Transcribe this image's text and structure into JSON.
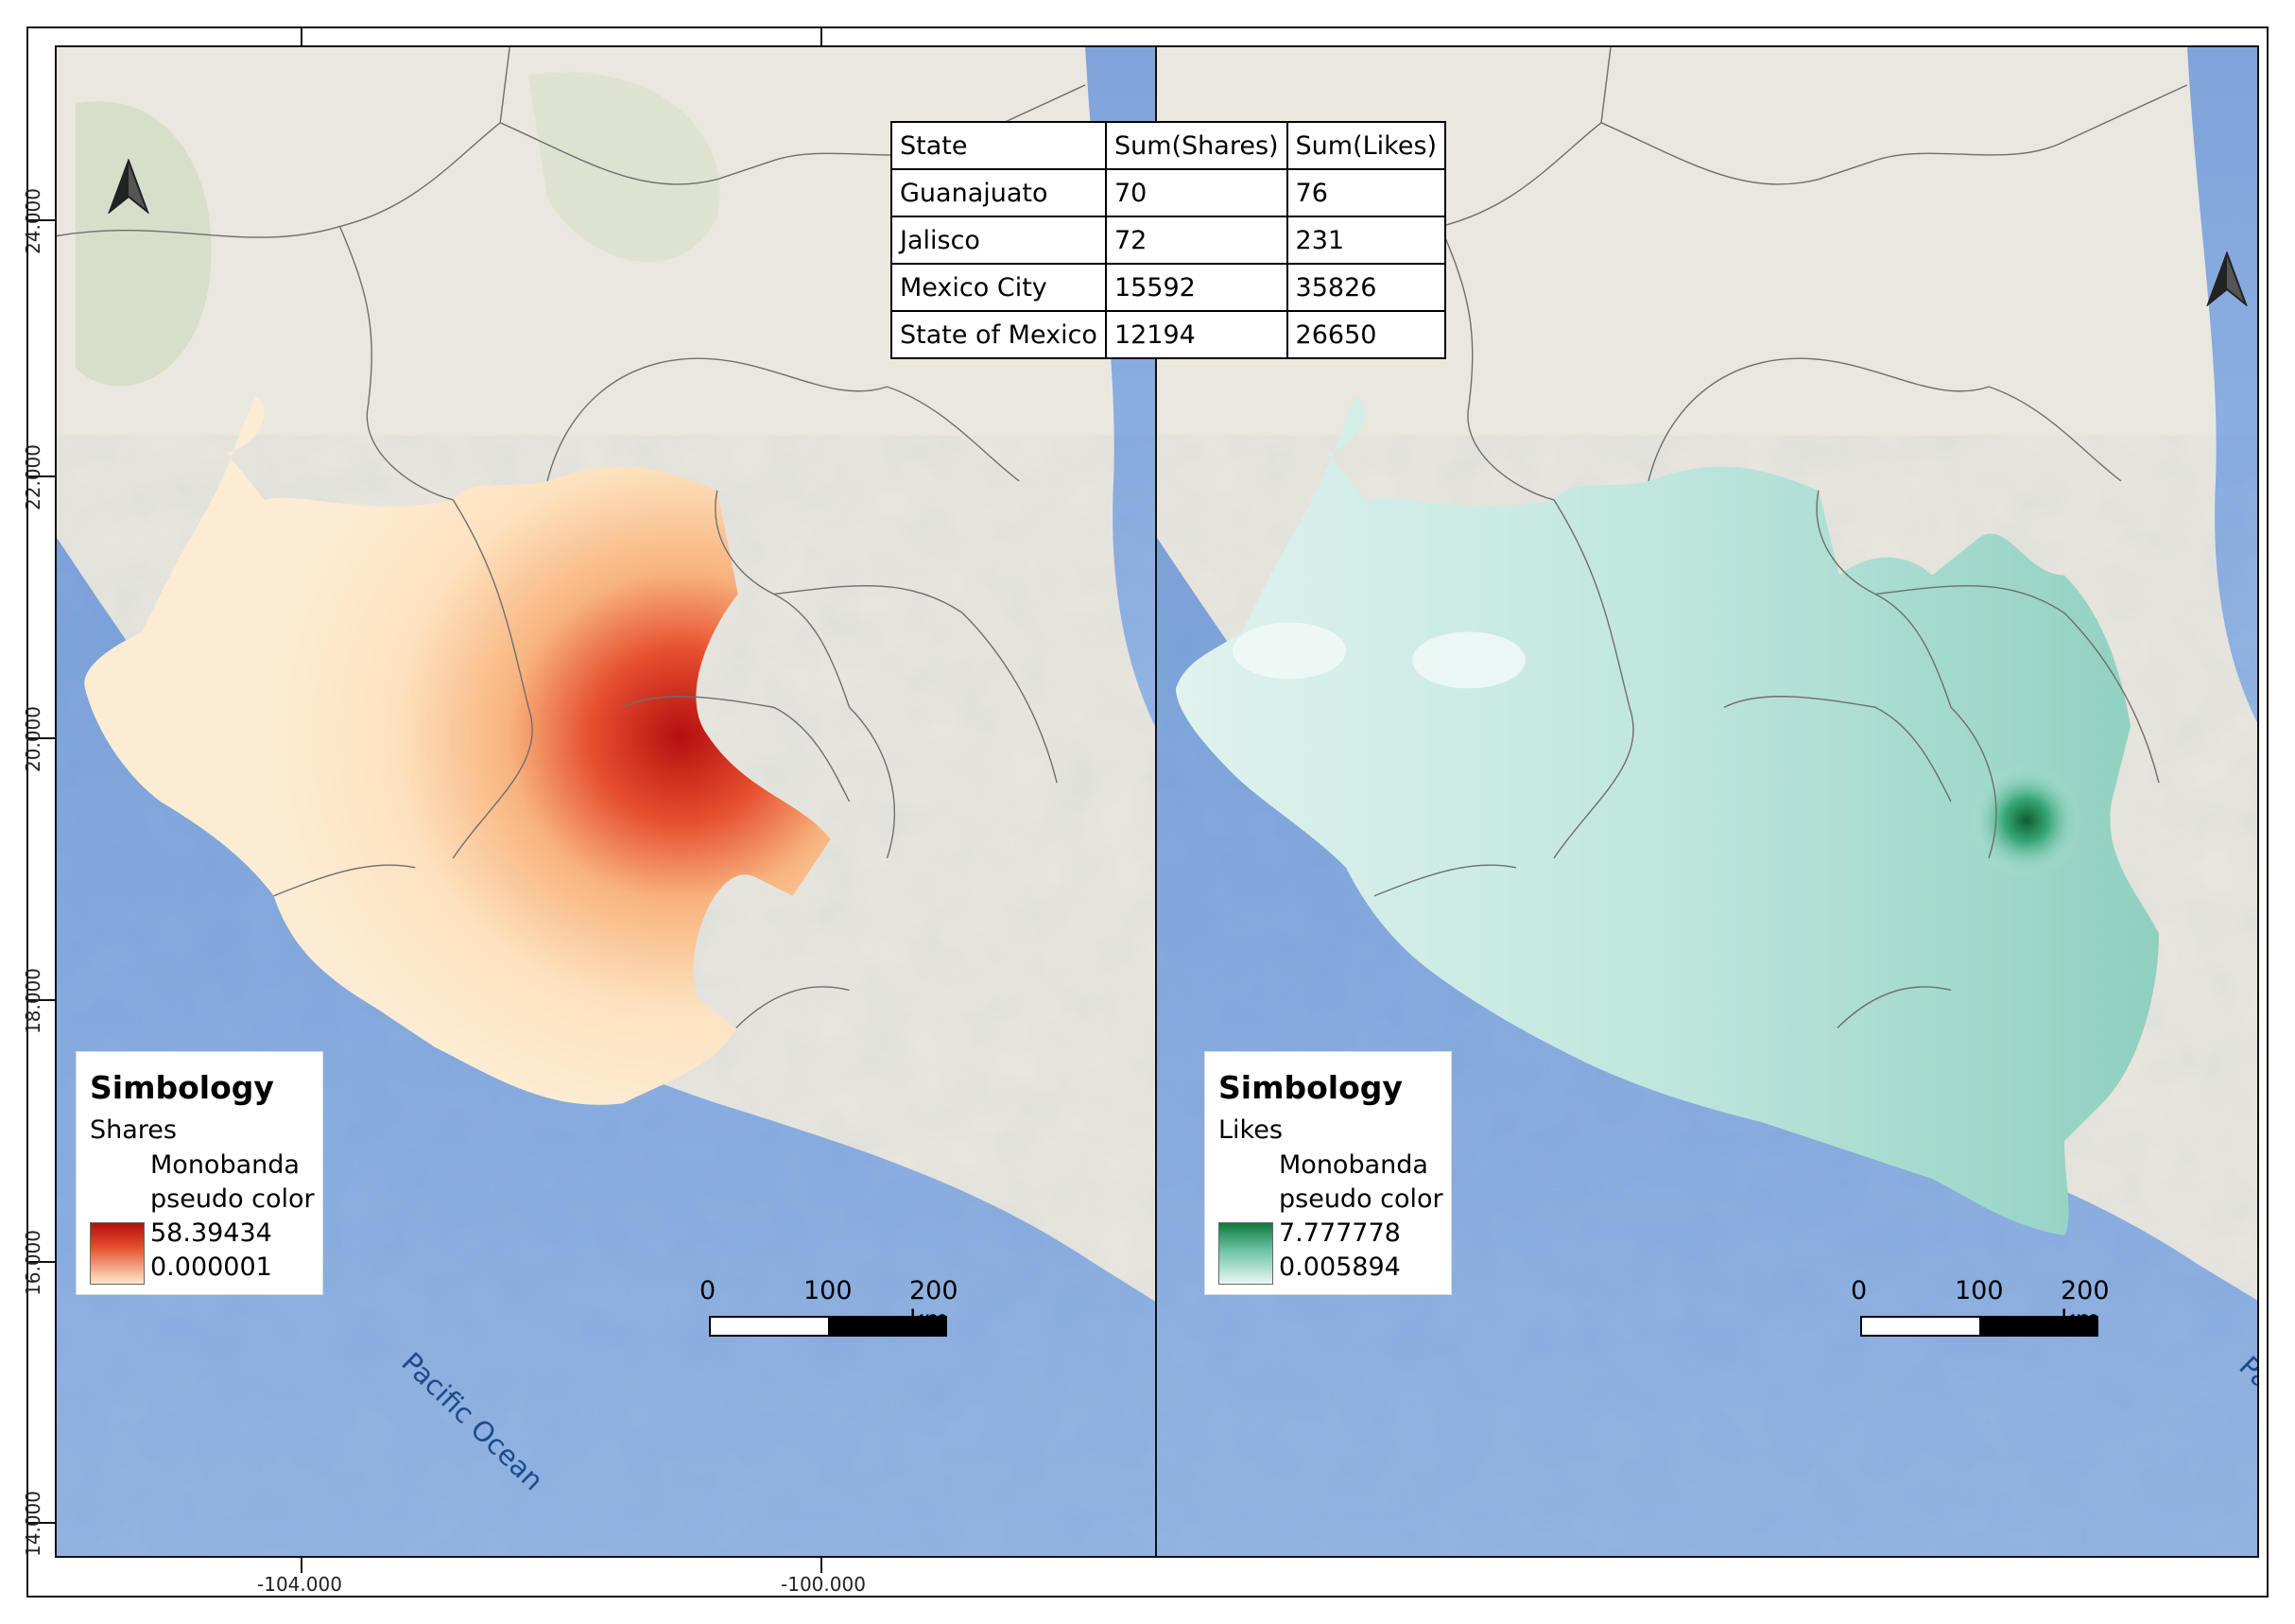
{
  "table": {
    "headers": [
      "State",
      "Sum(Shares)",
      "Sum(Likes)"
    ],
    "rows": [
      [
        "Guanajuato",
        "70",
        "76"
      ],
      [
        "Jalisco",
        "72",
        "231"
      ],
      [
        "Mexico City",
        "15592",
        "35826"
      ],
      [
        "State of Mexico",
        "12194",
        "26650"
      ]
    ]
  },
  "left_map": {
    "legend": {
      "title": "Simbology",
      "layer": "Shares",
      "mode_line1": "Monobanda",
      "mode_line2": "pseudo color",
      "max": "58.39434",
      "min": "0.000001",
      "ramp_colors": [
        "#b40f0f",
        "#fde9c9"
      ]
    },
    "ocean_label": "Pacific Ocean"
  },
  "right_map": {
    "legend": {
      "title": "Simbology",
      "layer": "Likes",
      "mode_line1": "Monobanda",
      "mode_line2": "pseudo color",
      "max": "7.777778",
      "min": "0.005894",
      "ramp_colors": [
        "#0e7a3d",
        "#e9f6f4"
      ]
    },
    "ocean_label": "Pacific Ocean"
  },
  "scalebar": {
    "labels": [
      "0",
      "100",
      "200 km"
    ]
  },
  "axes": {
    "x_ticks": [
      "-104.000",
      "-100.000"
    ],
    "y_ticks": [
      "24.000",
      "22.000",
      "20.000",
      "18.000",
      "16.000",
      "14.000"
    ]
  },
  "colors": {
    "land": "#eae7de",
    "ocean": "#8fb2e2",
    "shares_hot": "#b40f0f",
    "shares_cold": "#fde9c9",
    "likes_hot": "#0e7a3d",
    "likes_cold": "#e9f6f4"
  },
  "icons": [
    "north-arrow-icon"
  ]
}
